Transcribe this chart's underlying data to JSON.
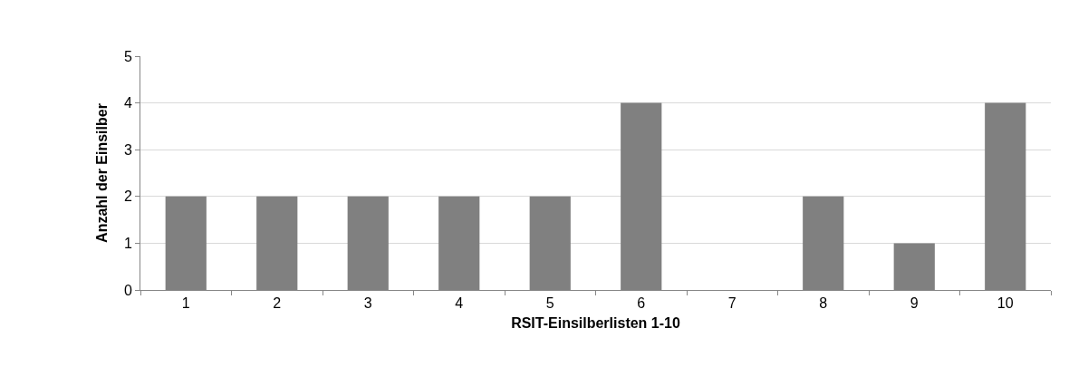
{
  "chart_data": {
    "type": "bar",
    "xlabel": "RSIT-Einsilberlisten 1-10",
    "ylabel": "Anzahl der Einsilber",
    "categories": [
      "1",
      "2",
      "3",
      "4",
      "5",
      "6",
      "7",
      "8",
      "9",
      "10"
    ],
    "values": [
      2,
      2,
      2,
      2,
      2,
      4,
      0,
      2,
      1,
      4
    ],
    "color": "#808080",
    "ylim": [
      0,
      5
    ],
    "yticks": [
      0,
      1,
      2,
      3,
      4,
      5
    ],
    "grid": "y"
  }
}
